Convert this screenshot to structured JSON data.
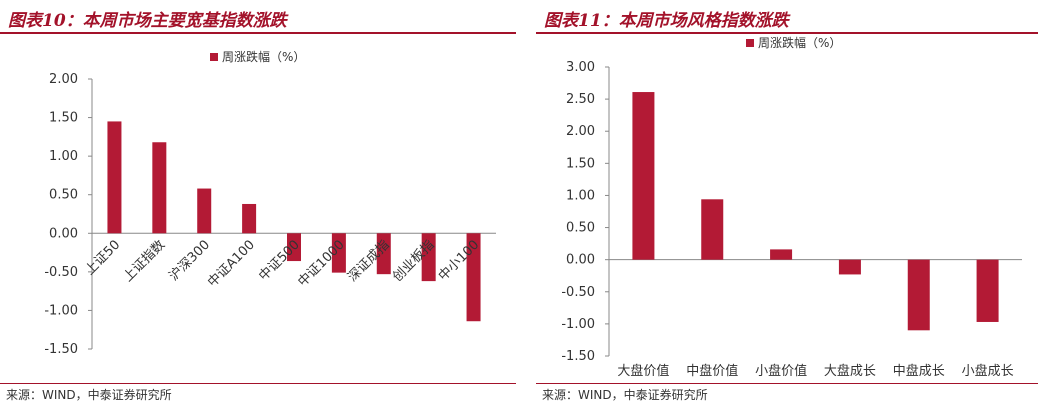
{
  "colors": {
    "accent": "#a3122a",
    "bar": "#b31a35",
    "axis": "#888888",
    "text": "#333333"
  },
  "source_note": "来源：WIND，中泰证券研究所",
  "chart_data": [
    {
      "type": "bar",
      "title": "图表10：本周市场主要宽基指数涨跌",
      "legend": {
        "label": "周涨跌幅（%）",
        "position": "top"
      },
      "categories": [
        "上证50",
        "上证指数",
        "沪深300",
        "中证A100",
        "中证500",
        "中证1000",
        "深证成指",
        "创业板指",
        "中小100"
      ],
      "series": [
        {
          "name": "周涨跌幅（%）",
          "values": [
            1.45,
            1.18,
            0.58,
            0.38,
            -0.36,
            -0.51,
            -0.53,
            -0.62,
            -1.14
          ]
        }
      ],
      "ylim": [
        -1.5,
        2.0
      ],
      "yticks": [
        "2.00",
        "1.50",
        "1.00",
        "0.50",
        "0.00",
        "-0.50",
        "-1.00",
        "-1.50"
      ],
      "ytick_values": [
        2.0,
        1.5,
        1.0,
        0.5,
        0.0,
        -0.5,
        -1.0,
        -1.5
      ],
      "category_label_style": "rotated",
      "grid": false
    },
    {
      "type": "bar",
      "title": "图表11：本周市场风格指数涨跌",
      "legend": {
        "label": "周涨跌幅（%）",
        "position": "top"
      },
      "categories": [
        "大盘价值",
        "中盘价值",
        "小盘价值",
        "大盘成长",
        "中盘成长",
        "小盘成长"
      ],
      "series": [
        {
          "name": "周涨跌幅（%）",
          "values": [
            2.61,
            0.94,
            0.16,
            -0.23,
            -1.1,
            -0.97
          ]
        }
      ],
      "ylim": [
        -1.5,
        3.0
      ],
      "yticks": [
        "3.00",
        "2.50",
        "2.00",
        "1.50",
        "1.00",
        "0.50",
        "0.00",
        "-0.50",
        "-1.00",
        "-1.50"
      ],
      "ytick_values": [
        3.0,
        2.5,
        2.0,
        1.5,
        1.0,
        0.5,
        0.0,
        -0.5,
        -1.0,
        -1.5
      ],
      "category_label_style": "bottom",
      "grid": false
    }
  ]
}
